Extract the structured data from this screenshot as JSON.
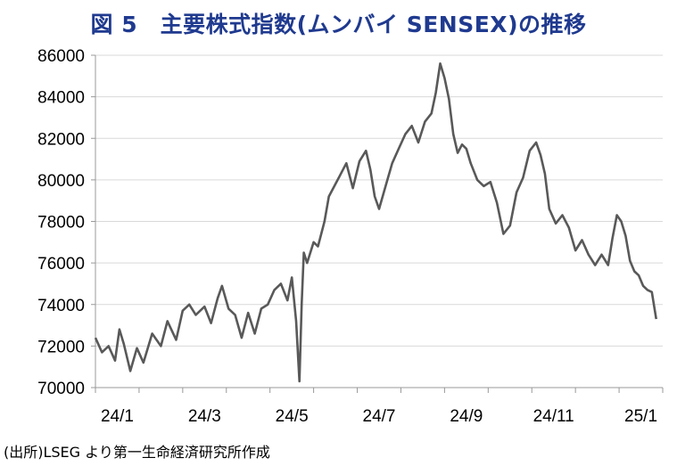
{
  "title": "図 5　主要株式指数(ムンバイ SENSEX)の推移",
  "source": "(出所)LSEG より第一生命経済研究所作成",
  "chart_data": {
    "type": "line",
    "title": "図 5　主要株式指数(ムンバイ SENSEX)の推移",
    "xlabel": "",
    "ylabel": "",
    "ylim": [
      70000,
      86000
    ],
    "yticks": [
      70000,
      72000,
      74000,
      76000,
      78000,
      80000,
      82000,
      84000,
      86000
    ],
    "xticks": [
      "24/1",
      "24/3",
      "24/5",
      "24/7",
      "24/9",
      "24/11",
      "25/1"
    ],
    "grid": true,
    "line_color": "#595959",
    "series": [
      {
        "values": [
          [
            0.0,
            72400
          ],
          [
            0.3,
            71700
          ],
          [
            0.6,
            72000
          ],
          [
            0.9,
            71300
          ],
          [
            1.1,
            72800
          ],
          [
            1.3,
            72100
          ],
          [
            1.6,
            70800
          ],
          [
            1.9,
            71900
          ],
          [
            2.2,
            71200
          ],
          [
            2.6,
            72600
          ],
          [
            3.0,
            72000
          ],
          [
            3.3,
            73200
          ],
          [
            3.7,
            72300
          ],
          [
            4.0,
            73700
          ],
          [
            4.3,
            74000
          ],
          [
            4.6,
            73500
          ],
          [
            5.0,
            73900
          ],
          [
            5.3,
            73100
          ],
          [
            5.6,
            74300
          ],
          [
            5.8,
            74900
          ],
          [
            6.1,
            73800
          ],
          [
            6.4,
            73500
          ],
          [
            6.7,
            72400
          ],
          [
            7.0,
            73600
          ],
          [
            7.3,
            72600
          ],
          [
            7.6,
            73800
          ],
          [
            7.9,
            74000
          ],
          [
            8.2,
            74700
          ],
          [
            8.5,
            75000
          ],
          [
            8.8,
            74200
          ],
          [
            9.0,
            75300
          ],
          [
            9.2,
            73200
          ],
          [
            9.35,
            70300
          ],
          [
            9.45,
            74000
          ],
          [
            9.55,
            76500
          ],
          [
            9.7,
            76000
          ],
          [
            10.0,
            77000
          ],
          [
            10.2,
            76800
          ],
          [
            10.5,
            78000
          ],
          [
            10.7,
            79200
          ],
          [
            11.0,
            79800
          ],
          [
            11.2,
            80200
          ],
          [
            11.5,
            80800
          ],
          [
            11.8,
            79600
          ],
          [
            12.1,
            80900
          ],
          [
            12.4,
            81400
          ],
          [
            12.6,
            80500
          ],
          [
            12.8,
            79200
          ],
          [
            13.0,
            78600
          ],
          [
            13.3,
            79700
          ],
          [
            13.6,
            80800
          ],
          [
            13.9,
            81500
          ],
          [
            14.2,
            82200
          ],
          [
            14.5,
            82600
          ],
          [
            14.8,
            81800
          ],
          [
            15.1,
            82800
          ],
          [
            15.4,
            83200
          ],
          [
            15.6,
            84200
          ],
          [
            15.8,
            85600
          ],
          [
            16.0,
            84900
          ],
          [
            16.2,
            83900
          ],
          [
            16.4,
            82200
          ],
          [
            16.6,
            81300
          ],
          [
            16.8,
            81700
          ],
          [
            17.0,
            81500
          ],
          [
            17.2,
            80800
          ],
          [
            17.5,
            80000
          ],
          [
            17.8,
            79700
          ],
          [
            18.1,
            79900
          ],
          [
            18.4,
            78900
          ],
          [
            18.7,
            77400
          ],
          [
            19.0,
            77800
          ],
          [
            19.3,
            79400
          ],
          [
            19.6,
            80100
          ],
          [
            19.9,
            81400
          ],
          [
            20.2,
            81800
          ],
          [
            20.4,
            81200
          ],
          [
            20.6,
            80300
          ],
          [
            20.8,
            78600
          ],
          [
            21.1,
            77900
          ],
          [
            21.4,
            78300
          ],
          [
            21.7,
            77700
          ],
          [
            22.0,
            76600
          ],
          [
            22.3,
            77100
          ],
          [
            22.6,
            76400
          ],
          [
            22.9,
            75900
          ],
          [
            23.2,
            76400
          ],
          [
            23.5,
            75900
          ],
          [
            23.7,
            77200
          ],
          [
            23.9,
            78300
          ],
          [
            24.1,
            78000
          ],
          [
            24.3,
            77300
          ],
          [
            24.5,
            76100
          ],
          [
            24.7,
            75600
          ],
          [
            24.9,
            75400
          ],
          [
            25.1,
            74900
          ],
          [
            25.3,
            74700
          ],
          [
            25.5,
            74600
          ],
          [
            25.7,
            73300
          ]
        ]
      }
    ]
  }
}
